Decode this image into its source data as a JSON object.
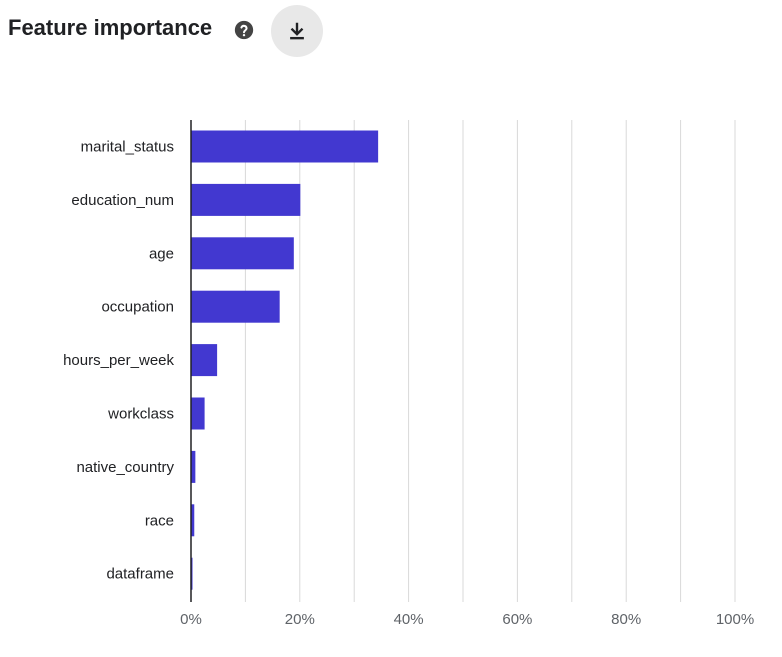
{
  "header": {
    "title": "Feature importance",
    "help_icon": "help-circle-icon",
    "download_icon": "download-icon"
  },
  "colors": {
    "bar": "#4238d0",
    "grid": "#d9d9d9",
    "axis": "#202124",
    "button_bg": "#e8e8e8"
  },
  "chart_data": {
    "type": "bar",
    "orientation": "horizontal",
    "categories": [
      "marital_status",
      "education_num",
      "age",
      "occupation",
      "hours_per_week",
      "workclass",
      "native_country",
      "race",
      "dataframe"
    ],
    "values": [
      34.4,
      20.1,
      18.9,
      16.3,
      4.8,
      2.5,
      0.8,
      0.6,
      0.2
    ],
    "value_unit": "%",
    "xlim": [
      0,
      100
    ],
    "x_ticks": [
      "0%",
      "20%",
      "40%",
      "60%",
      "80%",
      "100%"
    ],
    "grid": true,
    "title": "",
    "xlabel": "",
    "ylabel": ""
  }
}
